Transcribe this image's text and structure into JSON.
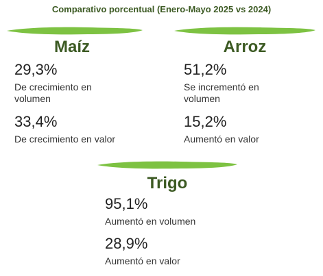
{
  "title": "Comparativo porcentual (Enero-Mayo 2025 vs 2024)",
  "accent_color": "#7dc242",
  "heading_color": "#3c5a23",
  "crops": {
    "maiz": {
      "name": "Maíz",
      "stats": [
        {
          "value": "29,3%",
          "label": "De crecimiento en volumen"
        },
        {
          "value": "33,4%",
          "label": "De crecimiento en valor"
        }
      ]
    },
    "arroz": {
      "name": "Arroz",
      "stats": [
        {
          "value": "51,2%",
          "label": "Se incrementó en volumen"
        },
        {
          "value": "15,2%",
          "label": "Aumentó en valor"
        }
      ]
    },
    "trigo": {
      "name": "Trigo",
      "stats": [
        {
          "value": "95,1%",
          "label": "Aumentó en volumen"
        },
        {
          "value": "28,9%",
          "label": "Aumentó en valor"
        }
      ]
    }
  }
}
